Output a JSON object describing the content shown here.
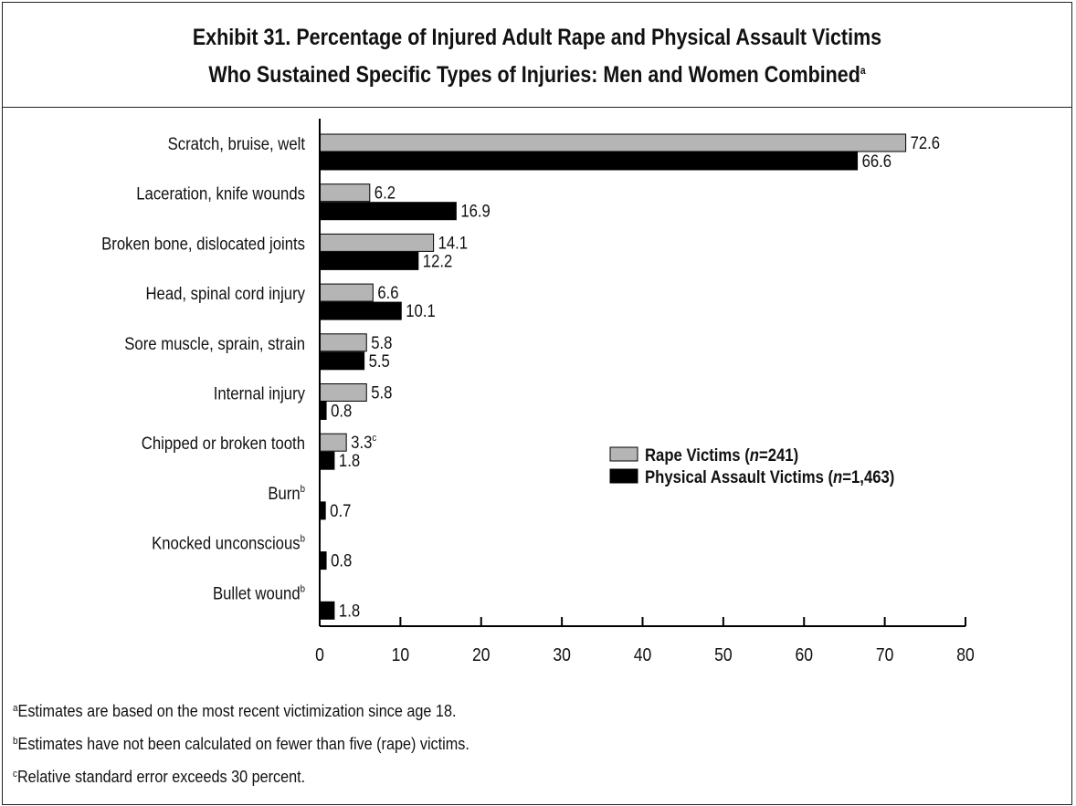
{
  "chart_data": {
    "type": "bar",
    "orientation": "horizontal",
    "title_line1": "Exhibit 31. Percentage of Injured Adult Rape and Physical Assault Victims",
    "title_line2": "Who Sustained Specific Types of Injuries: Men and Women Combined",
    "title_marker": "a",
    "categories": [
      {
        "label": "Scratch, bruise, welt",
        "marker": ""
      },
      {
        "label": "Laceration, knife wounds",
        "marker": ""
      },
      {
        "label": "Broken bone, dislocated joints",
        "marker": ""
      },
      {
        "label": "Head, spinal cord injury",
        "marker": ""
      },
      {
        "label": "Sore muscle, sprain, strain",
        "marker": ""
      },
      {
        "label": "Internal injury",
        "marker": ""
      },
      {
        "label": "Chipped or broken tooth",
        "marker": ""
      },
      {
        "label": "Burn",
        "marker": "b"
      },
      {
        "label": "Knocked unconscious",
        "marker": "b"
      },
      {
        "label": "Bullet wound",
        "marker": "b"
      }
    ],
    "series": [
      {
        "name": "Rape Victims (n=241)",
        "legend_prefix": "Rape Victims (",
        "legend_italic": "n",
        "legend_suffix": "=241)",
        "color": "#b5b5b5",
        "values": [
          72.6,
          6.2,
          14.1,
          6.6,
          5.8,
          5.8,
          3.3,
          null,
          null,
          null
        ],
        "labels": [
          "72.6",
          "6.2",
          "14.1",
          "6.6",
          "5.8",
          "5.8",
          "3.3",
          "",
          "",
          ""
        ],
        "label_markers": [
          "",
          "",
          "",
          "",
          "",
          "",
          "c",
          "",
          "",
          ""
        ]
      },
      {
        "name": "Physical Assault Victims (n=1,463)",
        "legend_prefix": "Physical Assault Victims (",
        "legend_italic": "n",
        "legend_suffix": "=1,463)",
        "color": "#000000",
        "values": [
          66.6,
          16.9,
          12.2,
          10.1,
          5.5,
          0.8,
          1.8,
          0.7,
          0.8,
          1.8
        ],
        "labels": [
          "66.6",
          "16.9",
          "12.2",
          "10.1",
          "5.5",
          "0.8",
          "1.8",
          "0.7",
          "0.8",
          "1.8"
        ],
        "label_markers": [
          "",
          "",
          "",
          "",
          "",
          "",
          "",
          "",
          "",
          ""
        ]
      }
    ],
    "xticks": [
      0,
      10,
      20,
      30,
      40,
      50,
      60,
      70,
      80
    ],
    "xlim": [
      0,
      80
    ],
    "xlabel": "",
    "ylabel": "",
    "grid": false,
    "legend_position": "right-middle"
  },
  "notes": [
    {
      "marker": "a",
      "text": "Estimates are based on the most recent victimization since age 18."
    },
    {
      "marker": "b",
      "text": "Estimates have not been calculated on fewer than five (rape) victims."
    },
    {
      "marker": "c",
      "text": "Relative standard error exceeds 30 percent."
    }
  ]
}
